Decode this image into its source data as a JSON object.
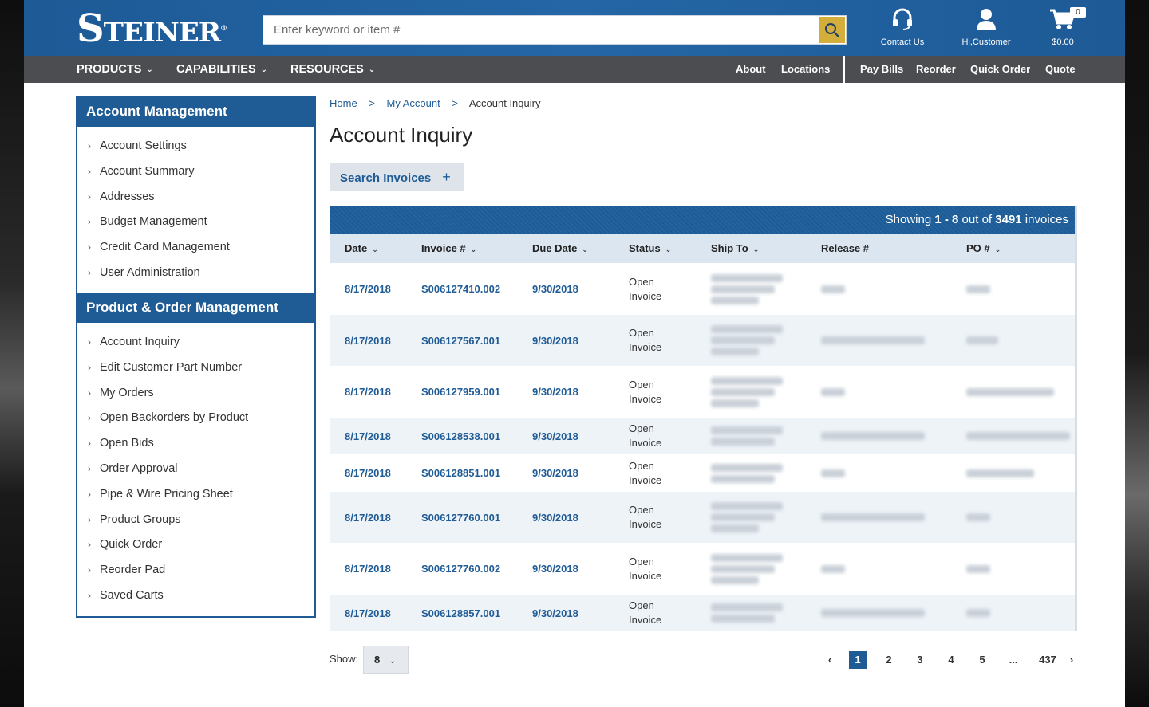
{
  "header": {
    "logo_text": "Steiner",
    "search_placeholder": "Enter keyword or item #",
    "contact_label": "Contact Us",
    "account_label": "Hi,Customer",
    "cart_total": "$0.00",
    "cart_count": "0"
  },
  "nav": {
    "menus": [
      "PRODUCTS",
      "CAPABILITIES",
      "RESOURCES"
    ],
    "links": [
      "About",
      "Locations"
    ],
    "quick_links": [
      "Pay Bills",
      "Reorder",
      "Quick Order",
      "Quote"
    ]
  },
  "sidebar": {
    "account_management": {
      "title": "Account Management",
      "items": [
        "Account Settings",
        "Account Summary",
        "Addresses",
        "Budget Management",
        "Credit Card Management",
        "User Administration"
      ]
    },
    "product_order_management": {
      "title": "Product & Order Management",
      "items": [
        "Account Inquiry",
        "Edit Customer Part Number",
        "My Orders",
        "Open Backorders by Product",
        "Open Bids",
        "Order Approval",
        "Pipe & Wire Pricing Sheet",
        "Product Groups",
        "Quick Order",
        "Reorder Pad",
        "Saved Carts"
      ]
    }
  },
  "breadcrumb": [
    "Home",
    "My Account",
    "Account Inquiry"
  ],
  "page_title": "Account Inquiry",
  "search_invoices_label": "Search Invoices",
  "summary": {
    "prefix": "Showing",
    "range": "1 - 8",
    "middle": "out of",
    "total": "3491",
    "suffix": "invoices"
  },
  "table": {
    "columns": [
      "Date",
      "Invoice #",
      "Due Date",
      "Status",
      "Ship To",
      "Release #",
      "PO #"
    ],
    "rows": [
      {
        "date": "8/17/2018",
        "invoice": "S006127410.002",
        "due": "9/30/2018",
        "status_line1": "Open",
        "status_line2": "Invoice"
      },
      {
        "date": "8/17/2018",
        "invoice": "S006127567.001",
        "due": "9/30/2018",
        "status_line1": "Open",
        "status_line2": "Invoice"
      },
      {
        "date": "8/17/2018",
        "invoice": "S006127959.001",
        "due": "9/30/2018",
        "status_line1": "Open",
        "status_line2": "Invoice"
      },
      {
        "date": "8/17/2018",
        "invoice": "S006128538.001",
        "due": "9/30/2018",
        "status_line1": "Open",
        "status_line2": "Invoice"
      },
      {
        "date": "8/17/2018",
        "invoice": "S006128851.001",
        "due": "9/30/2018",
        "status_line1": "Open",
        "status_line2": "Invoice"
      },
      {
        "date": "8/17/2018",
        "invoice": "S006127760.001",
        "due": "9/30/2018",
        "status_line1": "Open",
        "status_line2": "Invoice"
      },
      {
        "date": "8/17/2018",
        "invoice": "S006127760.002",
        "due": "9/30/2018",
        "status_line1": "Open",
        "status_line2": "Invoice"
      },
      {
        "date": "8/17/2018",
        "invoice": "S006128857.001",
        "due": "9/30/2018",
        "status_line1": "Open",
        "status_line2": "Invoice"
      }
    ]
  },
  "show": {
    "label": "Show:",
    "value": "8"
  },
  "pagination": {
    "pages": [
      "1",
      "2",
      "3",
      "4",
      "5",
      "...",
      "437"
    ],
    "active": "1"
  },
  "colors": {
    "primary": "#1f5b95",
    "nav_bg": "#4b4d50",
    "accent": "#d4ae3a"
  }
}
